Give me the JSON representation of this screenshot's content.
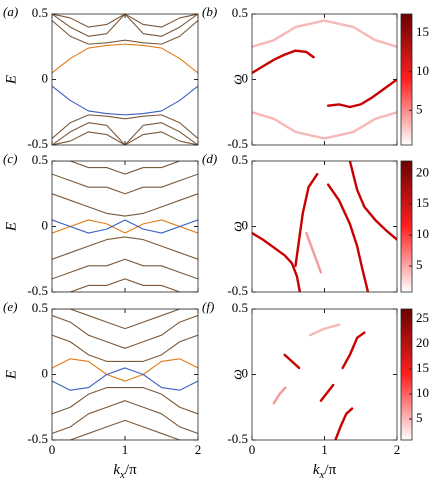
{
  "chart_data": [
    {
      "type": "line",
      "label": "(a)",
      "ylabel": "E",
      "show_xtick_labels": false,
      "x": [
        0,
        0.25,
        0.5,
        0.75,
        1,
        1.25,
        1.5,
        1.75,
        2
      ],
      "xlim": [
        0,
        2
      ],
      "ylim": [
        -0.5,
        0.5
      ],
      "xticks": [
        0,
        1,
        2
      ],
      "yticks": [
        -0.5,
        0,
        0.5
      ],
      "series": [
        {
          "color": "#7b5a3c",
          "values": [
            0.45,
            0.33,
            0.27,
            0.28,
            0.3,
            0.28,
            0.27,
            0.33,
            0.45
          ]
        },
        {
          "color": "#7b5a3c",
          "values": [
            0.5,
            0.4,
            0.33,
            0.35,
            0.5,
            0.35,
            0.33,
            0.4,
            0.5
          ]
        },
        {
          "color": "#7b5a3c",
          "values": [
            0.5,
            0.47,
            0.4,
            0.42,
            0.5,
            0.42,
            0.4,
            0.47,
            0.5
          ]
        },
        {
          "color": "#7b5a3c",
          "values": [
            -0.45,
            -0.33,
            -0.27,
            -0.28,
            -0.3,
            -0.28,
            -0.27,
            -0.33,
            -0.45
          ]
        },
        {
          "color": "#7b5a3c",
          "values": [
            -0.5,
            -0.4,
            -0.33,
            -0.35,
            -0.5,
            -0.35,
            -0.33,
            -0.4,
            -0.5
          ]
        },
        {
          "color": "#7b5a3c",
          "values": [
            -0.5,
            -0.47,
            -0.4,
            -0.42,
            -0.5,
            -0.42,
            -0.4,
            -0.47,
            -0.5
          ]
        },
        {
          "color": "#e07b1a",
          "values": [
            0.05,
            0.16,
            0.24,
            0.26,
            0.27,
            0.26,
            0.24,
            0.16,
            0.05
          ]
        },
        {
          "color": "#3b5fc0",
          "values": [
            -0.05,
            -0.16,
            -0.24,
            -0.26,
            -0.27,
            -0.26,
            -0.24,
            -0.16,
            -0.05
          ]
        }
      ]
    },
    {
      "type": "heatmap-ridge",
      "label": "(b)",
      "ylabel": "ω",
      "show_xtick_labels": false,
      "xlim": [
        0,
        2
      ],
      "ylim": [
        -0.5,
        0.5
      ],
      "xticks": [
        0,
        1,
        2
      ],
      "yticks": [
        -0.5,
        0,
        0.5
      ],
      "clim": [
        0.5,
        17.5
      ],
      "cticks": [
        5,
        10,
        15
      ],
      "colormap": [
        "#ffffff",
        "#ff2020",
        "#6a0000"
      ],
      "series": [
        {
          "color": "#c80000",
          "x": [
            0,
            0.15,
            0.3,
            0.45,
            0.6,
            0.75,
            0.85
          ],
          "values": [
            0.05,
            0.1,
            0.15,
            0.19,
            0.22,
            0.21,
            0.17
          ]
        },
        {
          "color": "#c80000",
          "x": [
            1.05,
            1.2,
            1.35,
            1.5,
            1.65,
            1.8,
            2
          ],
          "values": [
            -0.2,
            -0.19,
            -0.21,
            -0.19,
            -0.14,
            -0.08,
            0.0
          ]
        },
        {
          "color": "#f7b8b8",
          "x": [
            0,
            0.3,
            0.6,
            1,
            1.4,
            1.7,
            2
          ],
          "values": [
            0.25,
            0.3,
            0.4,
            0.45,
            0.4,
            0.3,
            0.25
          ]
        },
        {
          "color": "#f7b8b8",
          "x": [
            0,
            0.3,
            0.6,
            1,
            1.4,
            1.7,
            2
          ],
          "values": [
            -0.25,
            -0.3,
            -0.4,
            -0.45,
            -0.4,
            -0.3,
            -0.25
          ]
        }
      ]
    },
    {
      "type": "line",
      "label": "(c)",
      "ylabel": "E",
      "show_xtick_labels": false,
      "x": [
        0,
        0.25,
        0.5,
        0.75,
        1,
        1.25,
        1.5,
        1.75,
        2
      ],
      "xlim": [
        0,
        2
      ],
      "ylim": [
        -0.5,
        0.5
      ],
      "xticks": [
        0,
        1,
        2
      ],
      "yticks": [
        -0.5,
        0,
        0.5
      ],
      "series": [
        {
          "color": "#7b5a3c",
          "values": [
            0.25,
            0.2,
            0.15,
            0.1,
            0.08,
            0.1,
            0.15,
            0.2,
            0.25
          ]
        },
        {
          "color": "#7b5a3c",
          "values": [
            0.4,
            0.35,
            0.3,
            0.3,
            0.25,
            0.3,
            0.3,
            0.35,
            0.4
          ]
        },
        {
          "color": "#7b5a3c",
          "values": [
            0.5,
            0.5,
            0.45,
            0.45,
            0.4,
            0.45,
            0.45,
            0.5,
            0.5
          ]
        },
        {
          "color": "#7b5a3c",
          "values": [
            -0.25,
            -0.2,
            -0.15,
            -0.1,
            -0.08,
            -0.1,
            -0.15,
            -0.2,
            -0.25
          ]
        },
        {
          "color": "#7b5a3c",
          "values": [
            -0.4,
            -0.35,
            -0.3,
            -0.3,
            -0.25,
            -0.3,
            -0.3,
            -0.35,
            -0.4
          ]
        },
        {
          "color": "#7b5a3c",
          "values": [
            -0.5,
            -0.5,
            -0.45,
            -0.45,
            -0.4,
            -0.45,
            -0.45,
            -0.5,
            -0.5
          ]
        },
        {
          "color": "#e07b1a",
          "values": [
            -0.05,
            0,
            0.05,
            0.02,
            -0.05,
            0.02,
            0.05,
            0,
            -0.05
          ]
        },
        {
          "color": "#3b5fc0",
          "values": [
            0.05,
            0,
            -0.05,
            -0.02,
            0.05,
            -0.02,
            -0.05,
            0,
            0.05
          ]
        }
      ]
    },
    {
      "type": "heatmap-ridge",
      "label": "(d)",
      "ylabel": "ω",
      "show_xtick_labels": false,
      "xlim": [
        0,
        2
      ],
      "ylim": [
        -0.5,
        0.5
      ],
      "xticks": [
        0,
        1,
        2
      ],
      "yticks": [
        -0.5,
        0,
        0.5
      ],
      "clim": [
        0.8,
        22
      ],
      "cticks": [
        5,
        10,
        15,
        20
      ],
      "colormap": [
        "#ffffff",
        "#ff2020",
        "#6a0000"
      ],
      "series": [
        {
          "color": "#c80000",
          "x": [
            0,
            0.15,
            0.3,
            0.45,
            0.55,
            0.62,
            0.66
          ],
          "values": [
            -0.05,
            -0.1,
            -0.16,
            -0.22,
            -0.28,
            -0.38,
            -0.5
          ]
        },
        {
          "color": "#c80000",
          "x": [
            0.6,
            0.65,
            0.7,
            0.78,
            0.9
          ],
          "values": [
            -0.3,
            -0.1,
            0.1,
            0.3,
            0.4
          ]
        },
        {
          "color": "#c80000",
          "x": [
            1.05,
            1.2,
            1.35,
            1.45,
            1.52,
            1.6
          ],
          "values": [
            0.32,
            0.2,
            0.02,
            -0.15,
            -0.32,
            -0.5
          ]
        },
        {
          "color": "#c80000",
          "x": [
            1.35,
            1.45,
            1.55,
            1.7,
            1.85,
            2
          ],
          "values": [
            0.5,
            0.28,
            0.15,
            0.05,
            -0.03,
            -0.1
          ]
        },
        {
          "color": "#f39a9a",
          "x": [
            0.75,
            0.85,
            0.95
          ],
          "values": [
            -0.05,
            -0.2,
            -0.35
          ]
        }
      ]
    },
    {
      "type": "line",
      "label": "(e)",
      "ylabel": "E",
      "xlabel": [
        "k",
        "x",
        "/π"
      ],
      "show_xtick_labels": true,
      "x": [
        0,
        0.25,
        0.5,
        0.75,
        1,
        1.25,
        1.5,
        1.75,
        2
      ],
      "xlim": [
        0,
        2
      ],
      "ylim": [
        -0.5,
        0.5
      ],
      "xticks": [
        0,
        1,
        2
      ],
      "yticks": [
        -0.5,
        0,
        0.5
      ],
      "series": [
        {
          "color": "#7b5a3c",
          "values": [
            0.3,
            0.25,
            0.15,
            0.1,
            0.1,
            0.1,
            0.15,
            0.25,
            0.3
          ]
        },
        {
          "color": "#7b5a3c",
          "values": [
            0.45,
            0.4,
            0.3,
            0.25,
            0.2,
            0.25,
            0.3,
            0.4,
            0.45
          ]
        },
        {
          "color": "#7b5a3c",
          "values": [
            0.5,
            0.5,
            0.45,
            0.4,
            0.35,
            0.4,
            0.45,
            0.5,
            0.5
          ]
        },
        {
          "color": "#7b5a3c",
          "values": [
            -0.3,
            -0.25,
            -0.15,
            -0.1,
            -0.1,
            -0.1,
            -0.15,
            -0.25,
            -0.3
          ]
        },
        {
          "color": "#7b5a3c",
          "values": [
            -0.45,
            -0.4,
            -0.3,
            -0.25,
            -0.2,
            -0.25,
            -0.3,
            -0.4,
            -0.45
          ]
        },
        {
          "color": "#7b5a3c",
          "values": [
            -0.5,
            -0.5,
            -0.45,
            -0.4,
            -0.35,
            -0.4,
            -0.45,
            -0.5,
            -0.5
          ]
        },
        {
          "color": "#e07b1a",
          "values": [
            0.05,
            0.12,
            0.1,
            0.0,
            -0.05,
            0,
            0.1,
            0.12,
            0.05
          ]
        },
        {
          "color": "#3b5fc0",
          "values": [
            -0.05,
            -0.12,
            -0.1,
            0.0,
            0.05,
            0,
            -0.1,
            -0.12,
            -0.05
          ]
        }
      ]
    },
    {
      "type": "heatmap-ridge",
      "label": "(f)",
      "ylabel": "ω",
      "xlabel": [
        "k",
        "x",
        "/π"
      ],
      "show_xtick_labels": true,
      "xlim": [
        0,
        2
      ],
      "ylim": [
        -0.5,
        0.5
      ],
      "xticks": [
        0,
        1,
        2
      ],
      "yticks": [
        -0.5,
        0,
        0.5
      ],
      "clim": [
        0.8,
        27
      ],
      "cticks": [
        5,
        10,
        15,
        20,
        25
      ],
      "colormap": [
        "#ffffff",
        "#ff2020",
        "#6a0000"
      ],
      "series": [
        {
          "color": "#c80000",
          "x": [
            0.45,
            0.55,
            0.65
          ],
          "values": [
            0.15,
            0.1,
            0.05
          ]
        },
        {
          "color": "#c80000",
          "x": [
            1.25,
            1.35,
            1.45,
            1.55
          ],
          "values": [
            0.05,
            0.15,
            0.28,
            0.32
          ]
        },
        {
          "color": "#c80000",
          "x": [
            0.95,
            1.05,
            1.12
          ],
          "values": [
            -0.2,
            -0.13,
            -0.08
          ]
        },
        {
          "color": "#c80000",
          "x": [
            1.15,
            1.22,
            1.3,
            1.38
          ],
          "values": [
            -0.5,
            -0.4,
            -0.3,
            -0.26
          ]
        },
        {
          "color": "#f39a9a",
          "x": [
            0.3,
            0.38,
            0.46
          ],
          "values": [
            -0.22,
            -0.15,
            -0.1
          ]
        },
        {
          "color": "#f7b8b8",
          "x": [
            0.8,
            1.0,
            1.2
          ],
          "values": [
            0.3,
            0.35,
            0.38
          ]
        }
      ]
    }
  ]
}
